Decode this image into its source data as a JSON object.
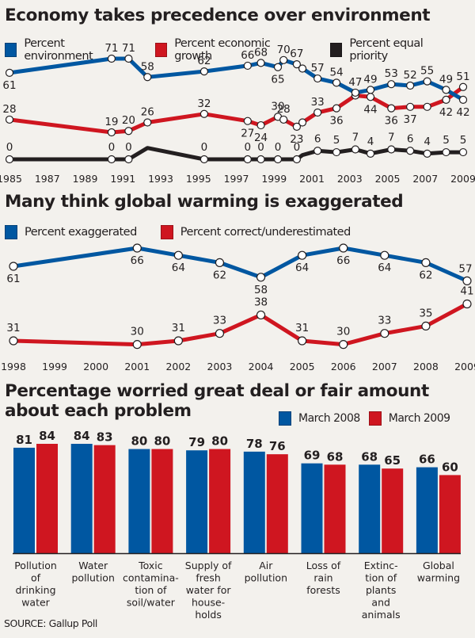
{
  "colors": {
    "blue": "#0057a1",
    "red": "#cf1620",
    "black": "#231f20",
    "background": "#f3f1ed"
  },
  "source": "SOURCE: Gallup Poll",
  "chart_data": [
    {
      "type": "line",
      "title": "Economy takes precedence over environment",
      "xlabel": "",
      "ylabel": "",
      "x_ticks": [
        "1985",
        "1987",
        "1989",
        "1991",
        "1993",
        "1995",
        "1997",
        "1999",
        "2001",
        "2003",
        "2005",
        "2007",
        "2009"
      ],
      "xlim": [
        1985,
        2009
      ],
      "legend": "top-left",
      "grid": false,
      "x": [
        1985,
        1990.4,
        1991.3,
        1992.3,
        1995.3,
        1997.6,
        1998.3,
        1999.2,
        1999.5,
        2000.2,
        2000.5,
        2001.3,
        2002.3,
        2003.3,
        2004.1,
        2005.2,
        2006.2,
        2007.1,
        2008.1,
        2009
      ],
      "series": [
        {
          "name": "Percent environment",
          "color": "blue",
          "values": [
            61,
            71,
            71,
            58,
            62,
            66,
            68,
            65,
            70,
            67,
            64,
            57,
            54,
            47,
            49,
            53,
            52,
            55,
            49,
            42
          ],
          "labels": [
            "61",
            "71",
            "71",
            "58",
            "62",
            "66",
            "68",
            "65",
            "70",
            "67",
            "",
            "57",
            "54",
            "47",
            "49",
            "53",
            "52",
            "55",
            "49",
            "42"
          ],
          "label_pos": [
            "below",
            "above",
            "above",
            "above",
            "above",
            "above",
            "above",
            "below",
            "above",
            "above",
            "above",
            "above",
            "above",
            "above",
            "above",
            "above",
            "above",
            "above",
            "above",
            "below"
          ]
        },
        {
          "name": "Percent economic growth",
          "color": "red",
          "values": [
            28,
            19,
            20,
            26,
            32,
            27,
            24,
            30,
            28,
            23,
            26,
            33,
            36,
            45,
            44,
            36,
            37,
            37,
            42,
            51
          ],
          "labels": [
            "28",
            "19",
            "20",
            "26",
            "32",
            "27",
            "24",
            "30",
            "28",
            "23",
            "",
            "33",
            "36",
            "",
            "44",
            "36",
            "37",
            "",
            "42",
            "51"
          ],
          "label_pos": [
            "above",
            "above",
            "above",
            "above",
            "above",
            "below",
            "below",
            "above",
            "above",
            "below",
            "above",
            "above",
            "below",
            "above",
            "below",
            "below",
            "below",
            "above",
            "below",
            "above"
          ]
        },
        {
          "name": "Percent equal priority",
          "color": "black",
          "values": [
            0,
            0,
            0,
            8,
            0,
            0,
            0,
            0,
            0,
            0,
            3,
            6,
            5,
            7,
            4,
            7,
            6,
            4,
            5,
            5
          ],
          "labels": [
            "0",
            "0",
            "0",
            "",
            "0",
            "0",
            "0",
            "0",
            "",
            "0",
            "",
            "6",
            "5",
            "7",
            "4",
            "7",
            "6",
            "4",
            "5",
            "5"
          ],
          "markers": [
            true,
            true,
            true,
            false,
            true,
            true,
            true,
            true,
            false,
            true,
            false,
            true,
            true,
            true,
            true,
            true,
            true,
            true,
            true,
            true
          ]
        }
      ]
    },
    {
      "type": "line",
      "title": "Many think global warming is exaggerated",
      "xlabel": "",
      "ylabel": "",
      "x_ticks": [
        "1998",
        "1999",
        "2000",
        "2001",
        "2002",
        "2003",
        "2004",
        "2005",
        "2006",
        "2007",
        "2008",
        "2009"
      ],
      "x": [
        1998,
        2001,
        2002,
        2003,
        2004,
        2005,
        2006,
        2007,
        2008,
        2009
      ],
      "legend": "top-left",
      "grid": false,
      "series": [
        {
          "name": "Percent exaggerated",
          "color": "blue",
          "values": [
            61,
            66,
            64,
            62,
            58,
            64,
            66,
            64,
            62,
            57
          ]
        },
        {
          "name": "Percent correct/underestimated",
          "color": "red",
          "values": [
            31,
            30,
            31,
            33,
            38,
            31,
            30,
            33,
            35,
            41
          ]
        }
      ]
    },
    {
      "type": "bar",
      "title": "Percentage worried great deal or fair amount about each problem",
      "title_lines": [
        "Percentage worried great deal or fair amount",
        "about each problem"
      ],
      "xlabel": "",
      "ylabel": "",
      "legend": "top-right",
      "grid": false,
      "categories": [
        [
          "Pollution",
          "of",
          "drinking",
          "water"
        ],
        [
          "Water",
          "pollution"
        ],
        [
          "Toxic",
          "contamina-",
          "tion of",
          "soil/water"
        ],
        [
          "Supply of",
          "fresh",
          "water for",
          "house-",
          "holds"
        ],
        [
          "Air",
          "pollution"
        ],
        [
          "Loss of",
          "rain",
          "forests"
        ],
        [
          "Extinc-",
          "tion of",
          "plants",
          "and",
          "animals"
        ],
        [
          "Global",
          "warming"
        ]
      ],
      "series": [
        {
          "name": "March 2008",
          "color": "blue",
          "values": [
            81,
            84,
            80,
            79,
            78,
            69,
            68,
            66
          ]
        },
        {
          "name": "March 2009",
          "color": "red",
          "values": [
            84,
            83,
            80,
            80,
            76,
            68,
            65,
            60
          ]
        }
      ]
    }
  ]
}
